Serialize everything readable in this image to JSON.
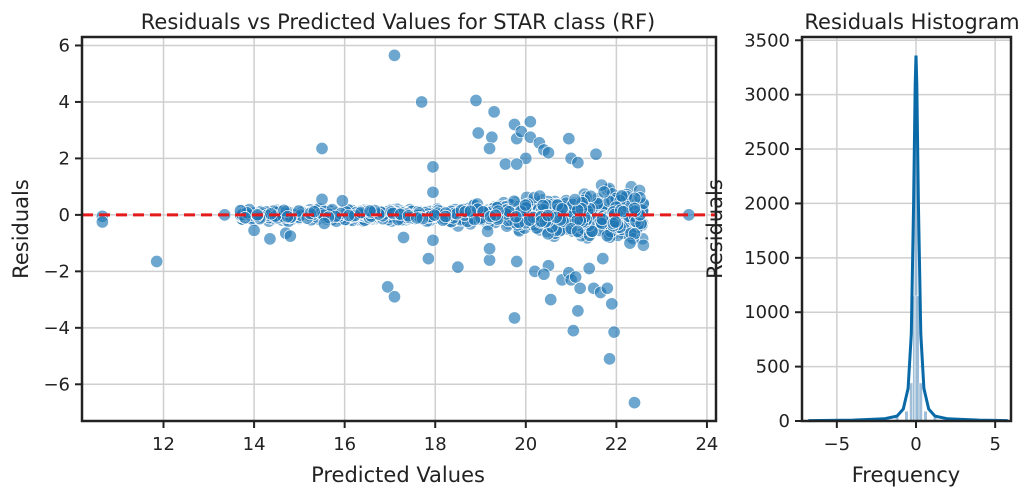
{
  "chart_data": [
    {
      "type": "scatter",
      "title": "Residuals vs Predicted Values for STAR class (RF)",
      "xlabel": "Predicted Values",
      "ylabel": "Residuals",
      "xlim": [
        10.2,
        24.2
      ],
      "ylim": [
        -7.3,
        6.3
      ],
      "xticks": [
        12,
        14,
        16,
        18,
        20,
        22,
        24
      ],
      "yticks": [
        -6,
        -4,
        -2,
        0,
        2,
        4,
        6
      ],
      "grid": true,
      "point_color": "#1f77b4",
      "reference_line": {
        "y": 0,
        "color": "#e41a1c",
        "style": "dashed"
      },
      "points": [
        [
          10.65,
          -0.05
        ],
        [
          10.65,
          -0.25
        ],
        [
          11.85,
          -1.65
        ],
        [
          13.35,
          0.0
        ],
        [
          13.7,
          0.15
        ],
        [
          13.8,
          -0.1
        ],
        [
          14.0,
          -0.55
        ],
        [
          14.35,
          -0.85
        ],
        [
          14.7,
          -0.65
        ],
        [
          14.8,
          -0.75
        ],
        [
          15.5,
          2.35
        ],
        [
          15.5,
          0.55
        ],
        [
          15.55,
          -0.3
        ],
        [
          15.95,
          0.5
        ],
        [
          17.1,
          5.65
        ],
        [
          17.7,
          4.0
        ],
        [
          16.95,
          -2.55
        ],
        [
          17.1,
          -2.9
        ],
        [
          17.3,
          -0.8
        ],
        [
          17.95,
          1.7
        ],
        [
          17.95,
          0.8
        ],
        [
          17.85,
          -1.55
        ],
        [
          17.95,
          -0.9
        ],
        [
          18.5,
          -1.85
        ],
        [
          18.9,
          4.05
        ],
        [
          19.3,
          3.65
        ],
        [
          18.95,
          2.9
        ],
        [
          19.25,
          2.75
        ],
        [
          19.2,
          2.35
        ],
        [
          19.55,
          1.8
        ],
        [
          19.2,
          -1.6
        ],
        [
          19.2,
          -1.2
        ],
        [
          19.75,
          3.2
        ],
        [
          19.8,
          2.7
        ],
        [
          19.9,
          2.95
        ],
        [
          20.1,
          3.3
        ],
        [
          20.1,
          2.75
        ],
        [
          20.0,
          2.0
        ],
        [
          19.8,
          1.8
        ],
        [
          19.75,
          -3.65
        ],
        [
          19.8,
          -1.65
        ],
        [
          20.3,
          2.55
        ],
        [
          20.4,
          2.3
        ],
        [
          20.5,
          2.2
        ],
        [
          20.2,
          -2.0
        ],
        [
          20.5,
          -1.8
        ],
        [
          20.4,
          -2.1
        ],
        [
          20.55,
          -3.0
        ],
        [
          20.8,
          -2.3
        ],
        [
          20.95,
          2.7
        ],
        [
          21.0,
          2.0
        ],
        [
          20.95,
          -2.05
        ],
        [
          21.0,
          -2.3
        ],
        [
          21.1,
          -2.2
        ],
        [
          21.15,
          1.85
        ],
        [
          21.2,
          -2.6
        ],
        [
          21.05,
          -4.1
        ],
        [
          21.15,
          -3.4
        ],
        [
          21.55,
          2.15
        ],
        [
          21.4,
          -1.9
        ],
        [
          21.5,
          -2.6
        ],
        [
          21.65,
          -2.75
        ],
        [
          21.7,
          -1.55
        ],
        [
          21.8,
          -2.6
        ],
        [
          21.9,
          -3.15
        ],
        [
          21.85,
          -5.1
        ],
        [
          21.95,
          -4.15
        ],
        [
          22.3,
          -1.0
        ],
        [
          22.4,
          -6.65
        ],
        [
          23.6,
          0.0
        ]
      ]
    },
    {
      "type": "area",
      "title": "Residuals Histogram",
      "xlabel": "Frequency",
      "ylabel": "Residuals",
      "xlim": [
        -7.2,
        6.0
      ],
      "ylim": [
        0,
        3530
      ],
      "xticks": [
        -5,
        0,
        5
      ],
      "yticks": [
        0,
        500,
        1000,
        1500,
        2000,
        2500,
        3000,
        3500
      ],
      "grid": true,
      "bar_color": "#8fb3d1",
      "kde_color": "#0a6aa8",
      "bins": [
        [
          -6.8,
          5
        ],
        [
          -5.0,
          5
        ],
        [
          -3.0,
          10
        ],
        [
          -2.0,
          18
        ],
        [
          -1.2,
          35
        ],
        [
          -0.6,
          90
        ],
        [
          -0.3,
          350
        ],
        [
          -0.1,
          1150
        ],
        [
          0.0,
          3200
        ],
        [
          0.1,
          1150
        ],
        [
          0.3,
          350
        ],
        [
          0.6,
          90
        ],
        [
          1.2,
          35
        ],
        [
          2.0,
          18
        ],
        [
          3.0,
          10
        ],
        [
          5.0,
          5
        ]
      ],
      "kde": [
        [
          -6.8,
          4
        ],
        [
          -4,
          8
        ],
        [
          -2,
          20
        ],
        [
          -1.2,
          45
        ],
        [
          -0.8,
          110
        ],
        [
          -0.5,
          300
        ],
        [
          -0.3,
          800
        ],
        [
          -0.15,
          2000
        ],
        [
          -0.05,
          3100
        ],
        [
          0.0,
          3360
        ],
        [
          0.05,
          3100
        ],
        [
          0.15,
          2000
        ],
        [
          0.3,
          800
        ],
        [
          0.5,
          300
        ],
        [
          0.8,
          110
        ],
        [
          1.2,
          45
        ],
        [
          2,
          20
        ],
        [
          4,
          8
        ],
        [
          5.8,
          4
        ]
      ]
    }
  ]
}
